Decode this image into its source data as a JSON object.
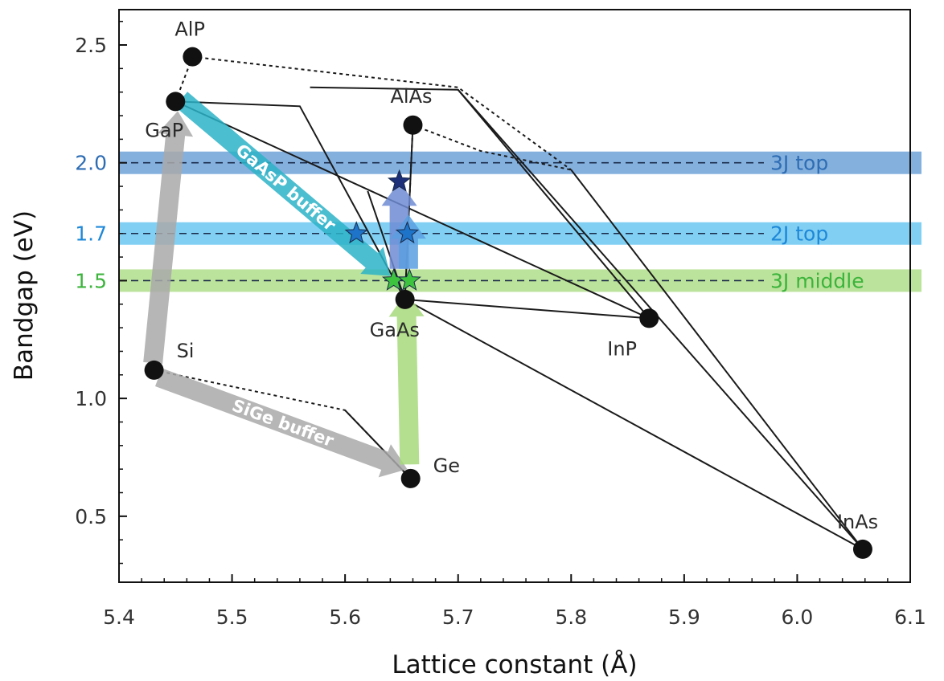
{
  "chart_data": {
    "type": "scatter",
    "title": "",
    "xlabel": "Lattice constant (Å)",
    "ylabel": "Bandgap (eV)",
    "xlim": [
      5.4,
      6.1
    ],
    "ylim": [
      0.22,
      2.65
    ],
    "x_ticks": [
      "5.4",
      "5.5",
      "5.6",
      "5.7",
      "5.8",
      "5.9",
      "6.0",
      "6.1"
    ],
    "y_ticks": [
      "0.5",
      "1.0",
      "1.5",
      "2.0",
      "2.5"
    ],
    "grid": false,
    "materials": [
      {
        "name": "AlP",
        "x": 5.465,
        "y": 2.45
      },
      {
        "name": "GaP",
        "x": 5.45,
        "y": 2.26
      },
      {
        "name": "AlAs",
        "x": 5.66,
        "y": 2.16
      },
      {
        "name": "GaAs",
        "x": 5.653,
        "y": 1.42
      },
      {
        "name": "InP",
        "x": 5.869,
        "y": 1.34
      },
      {
        "name": "Si",
        "x": 5.431,
        "y": 1.12
      },
      {
        "name": "Ge",
        "x": 5.658,
        "y": 0.66
      },
      {
        "name": "InAs",
        "x": 6.058,
        "y": 0.36
      }
    ],
    "bands": [
      {
        "label": "3J top",
        "value_label": "2.0",
        "y": 2.0,
        "color": "#2e6db4",
        "band_color": "#5b95d3"
      },
      {
        "label": "2J top",
        "value_label": "1.7",
        "y": 1.7,
        "color": "#1e88d8",
        "band_color": "#57c0ef"
      },
      {
        "label": "3J middle",
        "value_label": "1.5",
        "y": 1.5,
        "color": "#3cb43c",
        "band_color": "#a6d97a"
      }
    ],
    "stars": [
      {
        "x": 5.648,
        "y": 1.92,
        "color": "#1c2f78"
      },
      {
        "x": 5.61,
        "y": 1.7,
        "color": "#1e74c8"
      },
      {
        "x": 5.655,
        "y": 1.7,
        "color": "#1e74c8"
      },
      {
        "x": 5.643,
        "y": 1.5,
        "color": "#3ec33e"
      },
      {
        "x": 5.657,
        "y": 1.5,
        "color": "#3ec33e"
      }
    ],
    "arrows": [
      {
        "label": "",
        "from": [
          5.43,
          1.15
        ],
        "to": [
          5.452,
          2.22
        ],
        "color": "#a9a9a9"
      },
      {
        "label": "SiGe buffer",
        "from": [
          5.435,
          1.09
        ],
        "to": [
          5.655,
          0.7
        ],
        "color": "#a9a9a9"
      },
      {
        "label": "",
        "from": [
          5.657,
          0.72
        ],
        "to": [
          5.654,
          1.45
        ],
        "color": "#a6d97a"
      },
      {
        "label": "GaAsP buffer",
        "from": [
          5.455,
          2.27
        ],
        "to": [
          5.64,
          1.52
        ],
        "color": "#2bb3c7"
      },
      {
        "label": "",
        "from": [
          5.648,
          1.55
        ],
        "to": [
          5.648,
          1.92
        ],
        "color": "#6f8cd4"
      },
      {
        "label": "",
        "from": [
          5.656,
          1.55
        ],
        "to": [
          5.656,
          1.78
        ],
        "color": "#5a9fe0"
      }
    ],
    "solid_lines": [
      [
        [
          5.45,
          2.26
        ],
        [
          5.56,
          2.24
        ],
        [
          5.653,
          1.42
        ]
      ],
      [
        [
          5.45,
          2.26
        ],
        [
          5.869,
          1.34
        ]
      ],
      [
        [
          5.569,
          2.32
        ],
        [
          5.7,
          2.31
        ],
        [
          5.869,
          1.34
        ]
      ],
      [
        [
          5.7,
          2.31
        ],
        [
          6.058,
          0.36
        ]
      ],
      [
        [
          5.8,
          1.97
        ],
        [
          6.058,
          0.36
        ]
      ],
      [
        [
          5.62,
          1.88
        ],
        [
          5.653,
          1.42
        ]
      ],
      [
        [
          5.6,
          0.95
        ],
        [
          5.658,
          0.66
        ]
      ],
      [
        [
          5.653,
          1.42
        ],
        [
          6.058,
          0.36
        ]
      ],
      [
        [
          5.653,
          1.42
        ],
        [
          5.869,
          1.34
        ]
      ],
      [
        [
          5.66,
          2.16
        ],
        [
          5.653,
          1.42
        ]
      ]
    ],
    "dashed_lines": [
      [
        [
          5.465,
          2.45
        ],
        [
          5.45,
          2.26
        ]
      ],
      [
        [
          5.465,
          2.45
        ],
        [
          5.7,
          2.32
        ],
        [
          5.8,
          1.97
        ]
      ],
      [
        [
          5.66,
          2.16
        ],
        [
          5.72,
          2.05
        ],
        [
          5.8,
          1.97
        ]
      ],
      [
        [
          5.66,
          2.16
        ],
        [
          5.653,
          1.42
        ]
      ],
      [
        [
          5.431,
          1.12
        ],
        [
          5.6,
          0.95
        ],
        [
          5.658,
          0.66
        ]
      ]
    ]
  }
}
